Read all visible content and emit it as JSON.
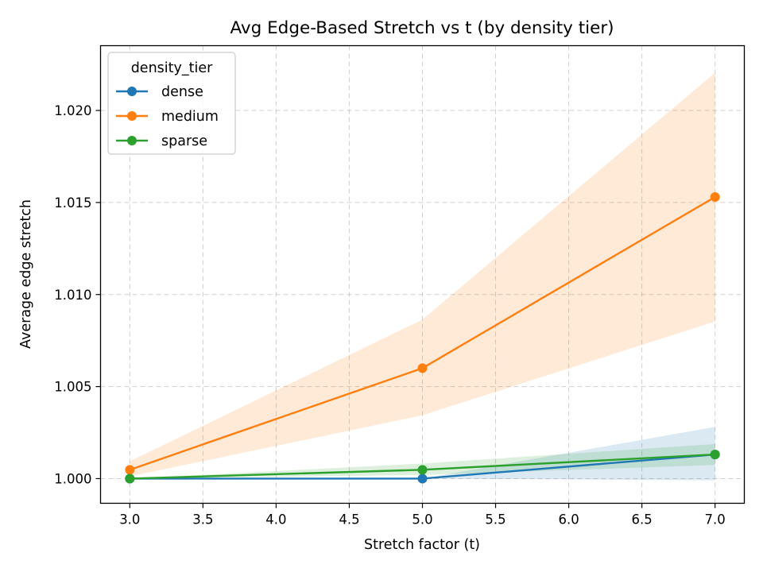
{
  "chart_data": {
    "type": "line",
    "title": "Avg Edge-Based Stretch vs t (by density tier)",
    "xlabel": "Stretch factor (t)",
    "ylabel": "Average edge stretch",
    "xlim": [
      2.8,
      7.2
    ],
    "ylim": [
      0.99866,
      1.02352
    ],
    "x_ticks": [
      3.0,
      3.5,
      4.0,
      4.5,
      5.0,
      5.5,
      6.0,
      6.5,
      7.0
    ],
    "x_tick_labels": [
      "3.0",
      "3.5",
      "4.0",
      "4.5",
      "5.0",
      "5.5",
      "6.0",
      "6.5",
      "7.0"
    ],
    "y_ticks": [
      1.0,
      1.005,
      1.01,
      1.015,
      1.02
    ],
    "y_tick_labels": [
      "1.000",
      "1.005",
      "1.010",
      "1.015",
      "1.020"
    ],
    "grid": true,
    "legend": {
      "title": "density_tier",
      "placement": "top-left"
    },
    "x": [
      3.0,
      5.0,
      7.0
    ],
    "series": [
      {
        "name": "dense",
        "color": "#1f77b4",
        "values": [
          1.0,
          1.0,
          1.00131
        ],
        "band_lower": [
          1.0,
          1.0,
          0.99991
        ],
        "band_upper": [
          1.0,
          1.0,
          1.00281
        ]
      },
      {
        "name": "medium",
        "color": "#ff7f0e",
        "values": [
          1.00048,
          1.006,
          1.0153
        ],
        "band_lower": [
          1.00012,
          1.00344,
          1.00854
        ],
        "band_upper": [
          1.00094,
          1.00864,
          1.02205
        ]
      },
      {
        "name": "sparse",
        "color": "#2ca02c",
        "values": [
          1.0,
          1.00048,
          1.00131
        ],
        "band_lower": [
          1.0,
          1.0002,
          1.00074
        ],
        "band_upper": [
          1.0,
          1.00082,
          1.00188
        ]
      }
    ]
  }
}
